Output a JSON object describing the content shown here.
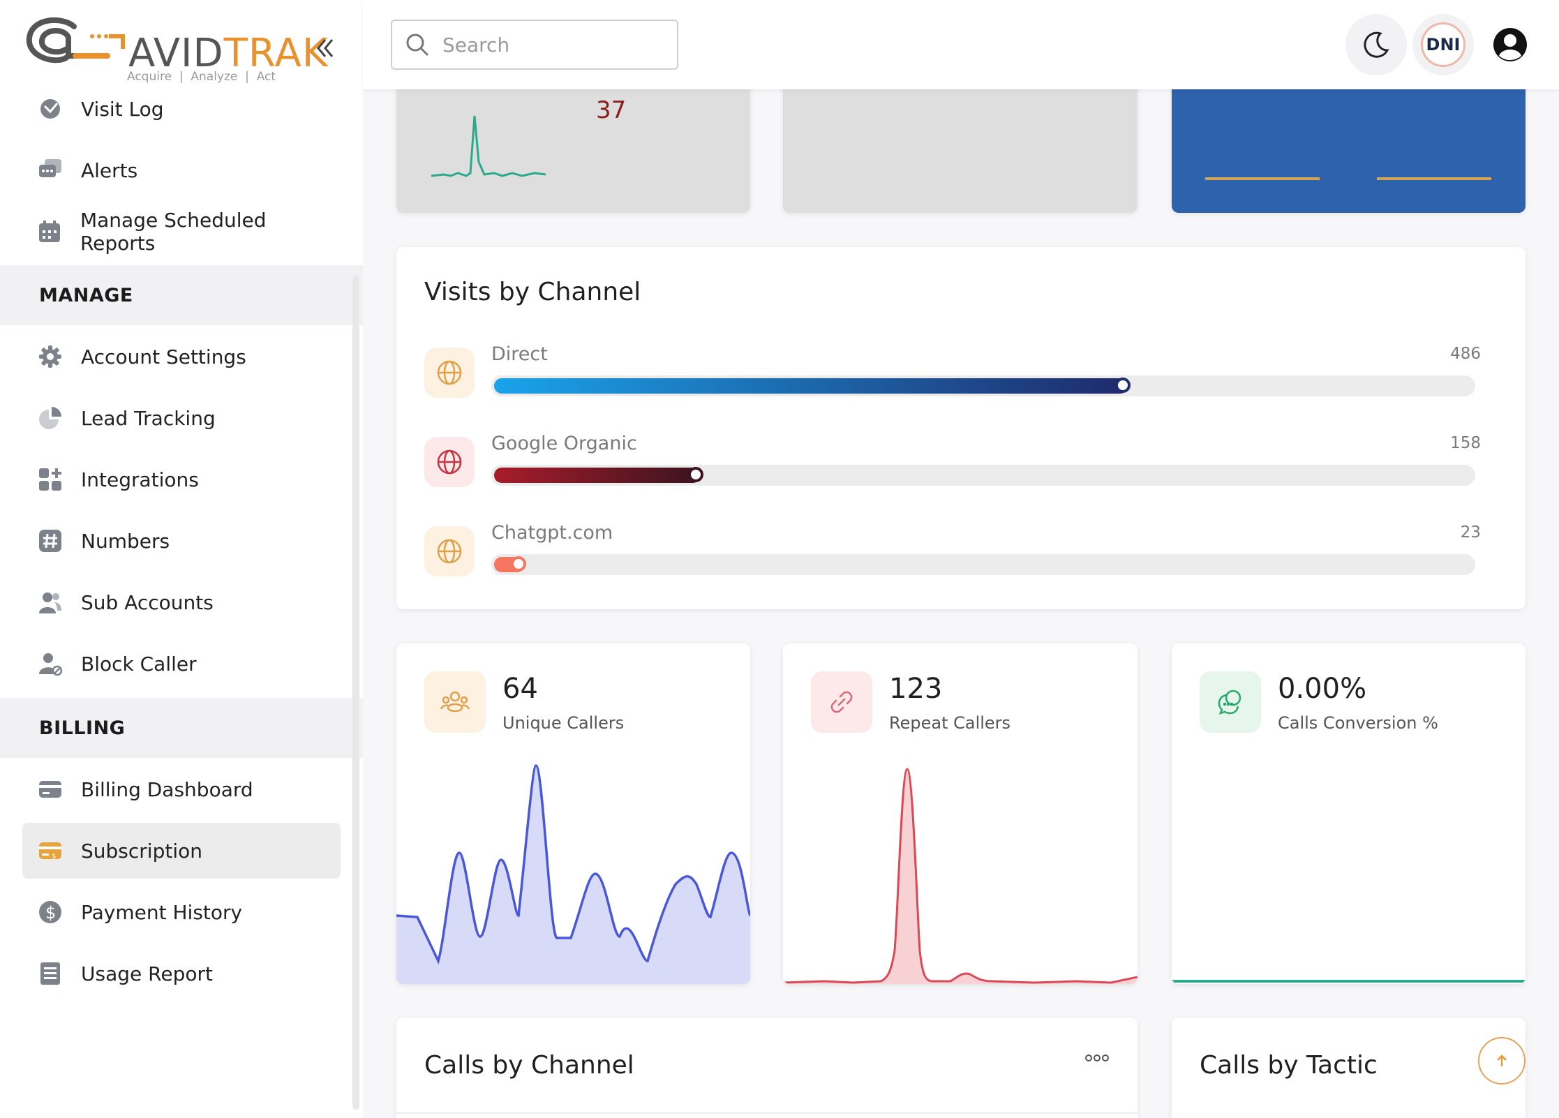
{
  "brand": {
    "name_part1": "AVID",
    "name_part2": "TRAK",
    "tagline": "Acquire  |  Analyze  |  Act"
  },
  "sidebar": {
    "collapse_icon": "double-chevron-left-icon",
    "items_top": [
      {
        "label": "Visit Log",
        "icon": "visit-log-icon"
      },
      {
        "label": "Alerts",
        "icon": "alerts-icon"
      },
      {
        "label": "Manage Scheduled Reports",
        "icon": "calendar-icon"
      }
    ],
    "manage_heading": "MANAGE",
    "manage_items": [
      {
        "label": "Account Settings",
        "icon": "gear-icon"
      },
      {
        "label": "Lead Tracking",
        "icon": "pie-chart-icon"
      },
      {
        "label": "Integrations",
        "icon": "grid-plus-icon"
      },
      {
        "label": "Numbers",
        "icon": "hash-icon"
      },
      {
        "label": "Sub Accounts",
        "icon": "users-icon"
      },
      {
        "label": "Block Caller",
        "icon": "user-block-icon"
      }
    ],
    "billing_heading": "BILLING",
    "billing_items": [
      {
        "label": "Billing Dashboard",
        "icon": "credit-card-icon"
      },
      {
        "label": "Subscription",
        "icon": "subscription-card-icon",
        "active": true
      },
      {
        "label": "Payment History",
        "icon": "dollar-icon"
      },
      {
        "label": "Usage Report",
        "icon": "report-icon"
      }
    ]
  },
  "topbar": {
    "search_placeholder": "Search",
    "dni_label": "DNI",
    "theme_icon": "moon-icon",
    "profile_icon": "user-circle-icon"
  },
  "top_cards": [
    {
      "value_right": "37",
      "value_right_color": "#8a1c1c"
    }
  ],
  "visits_by_channel": {
    "title": "Visits by Channel",
    "channels": [
      {
        "name": "Direct",
        "value": "486",
        "fraction": 0.648
      },
      {
        "name": "Google Organic",
        "value": "158",
        "fraction": 0.211
      },
      {
        "name": "Chatgpt.com",
        "value": "23",
        "fraction": 0.031
      }
    ],
    "colors": {
      "direct_start": "#1aa3ea",
      "direct_end": "#1f2a6b",
      "google_start": "#a81c2a",
      "google_end": "#3a1420",
      "chatgpt": "#f47560"
    }
  },
  "stats": [
    {
      "value": "64",
      "label": "Unique Callers",
      "icon": "users-group-icon"
    },
    {
      "value": "123",
      "label": "Repeat Callers",
      "icon": "link-icon"
    },
    {
      "value": "0.00%",
      "label": "Calls Conversion %",
      "icon": "chat-icon"
    }
  ],
  "sections": {
    "calls_by_channel": "Calls by Channel",
    "calls_by_tactic": "Calls by Tactic",
    "more_icon": "more-dots-icon",
    "scroll_top_icon": "arrow-up-icon"
  },
  "colors": {
    "accent_orange": "#e8912f",
    "blue_card": "#2d62ad",
    "active_bg": "#ececec"
  }
}
